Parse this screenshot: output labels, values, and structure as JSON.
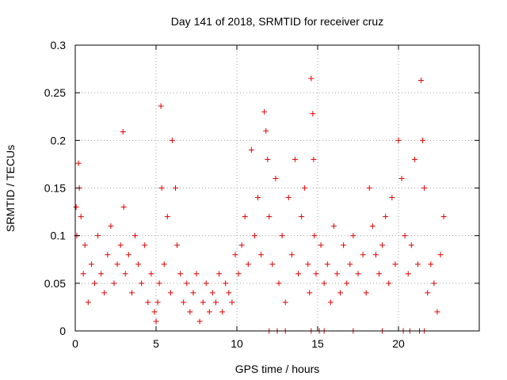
{
  "chart_data": {
    "type": "scatter",
    "title": "Day 141 of 2018, SRMTID for receiver cruz",
    "xlabel": "GPS time / hours",
    "ylabel": "SRMTID / TECUs",
    "xlim": [
      0,
      25
    ],
    "ylim": [
      0,
      0.3
    ],
    "x_ticks": [
      0,
      5,
      10,
      15,
      20
    ],
    "x_tick_labels": [
      "0",
      "5",
      "10",
      "15",
      "20"
    ],
    "y_ticks": [
      0,
      0.05,
      0.1,
      0.15,
      0.2,
      0.25,
      0.3
    ],
    "y_tick_labels": [
      "0",
      "0.05",
      "0.1",
      "0.15",
      "0.2",
      "0.25",
      "0.3"
    ],
    "grid": true,
    "marker": "plus",
    "series": [
      {
        "color": "#e00000",
        "x": [
          0.05,
          0.1,
          0.2,
          0.25,
          0.35,
          0.5,
          0.6,
          0.8,
          1.0,
          1.2,
          1.4,
          1.6,
          1.8,
          2.0,
          2.2,
          2.4,
          2.6,
          2.8,
          2.95,
          3.0,
          3.1,
          3.3,
          3.5,
          3.7,
          3.9,
          4.1,
          4.3,
          4.5,
          4.7,
          4.9,
          5.0,
          5.1,
          5.2,
          5.3,
          5.35,
          5.5,
          5.7,
          5.9,
          6.0,
          6.2,
          6.3,
          6.5,
          6.7,
          6.9,
          7.1,
          7.3,
          7.5,
          7.7,
          7.9,
          8.1,
          8.3,
          8.5,
          8.7,
          8.9,
          9.1,
          9.3,
          9.5,
          9.7,
          9.9,
          10.1,
          10.3,
          10.5,
          10.7,
          10.9,
          11.1,
          11.3,
          11.5,
          11.7,
          11.8,
          11.9,
          12.0,
          12.2,
          12.4,
          12.6,
          12.8,
          13.0,
          13.2,
          13.4,
          13.6,
          13.8,
          14.0,
          14.2,
          14.4,
          14.5,
          14.6,
          14.7,
          14.75,
          14.8,
          14.9,
          15.2,
          15.4,
          15.6,
          15.8,
          16.0,
          16.2,
          16.4,
          16.6,
          16.8,
          17.0,
          17.2,
          17.5,
          17.8,
          18.0,
          18.2,
          18.4,
          18.6,
          18.8,
          19.0,
          19.2,
          19.4,
          19.6,
          19.8,
          20.0,
          20.2,
          20.4,
          20.6,
          20.8,
          21.0,
          21.2,
          21.4,
          21.5,
          21.6,
          21.8,
          22.0,
          22.2,
          22.4,
          22.6,
          22.8,
          12.0,
          12.5,
          13.0,
          14.6,
          15.1,
          15.4,
          17.2,
          19.0,
          20.3,
          20.7,
          21.3,
          21.6
        ],
        "y": [
          0.13,
          0.1,
          0.176,
          0.15,
          0.12,
          0.06,
          0.09,
          0.03,
          0.07,
          0.05,
          0.1,
          0.06,
          0.04,
          0.08,
          0.11,
          0.05,
          0.07,
          0.09,
          0.209,
          0.13,
          0.06,
          0.08,
          0.04,
          0.1,
          0.07,
          0.05,
          0.09,
          0.03,
          0.06,
          0.02,
          0.01,
          0.03,
          0.05,
          0.236,
          0.15,
          0.07,
          0.12,
          0.04,
          0.2,
          0.15,
          0.09,
          0.06,
          0.03,
          0.05,
          0.02,
          0.04,
          0.06,
          0.01,
          0.03,
          0.05,
          0.02,
          0.04,
          0.03,
          0.06,
          0.02,
          0.05,
          0.04,
          0.03,
          0.08,
          0.06,
          0.09,
          0.12,
          0.07,
          0.19,
          0.1,
          0.14,
          0.08,
          0.23,
          0.21,
          0.18,
          0.12,
          0.07,
          0.16,
          0.05,
          0.1,
          0.03,
          0.14,
          0.08,
          0.18,
          0.06,
          0.12,
          0.15,
          0.07,
          0.04,
          0.265,
          0.228,
          0.18,
          0.1,
          0.06,
          0.09,
          0.05,
          0.07,
          0.03,
          0.11,
          0.06,
          0.04,
          0.09,
          0.05,
          0.07,
          0.1,
          0.06,
          0.08,
          0.04,
          0.15,
          0.11,
          0.08,
          0.06,
          0.09,
          0.12,
          0.05,
          0.14,
          0.07,
          0.2,
          0.16,
          0.1,
          0.06,
          0.09,
          0.18,
          0.07,
          0.263,
          0.2,
          0.15,
          0.04,
          0.07,
          0.05,
          0.02,
          0.08,
          0.12,
          0.0,
          0.0,
          0.0,
          0.0,
          0.0,
          0.0,
          0.0,
          0.0,
          0.0,
          0.0,
          0.0,
          0.0
        ]
      }
    ]
  }
}
